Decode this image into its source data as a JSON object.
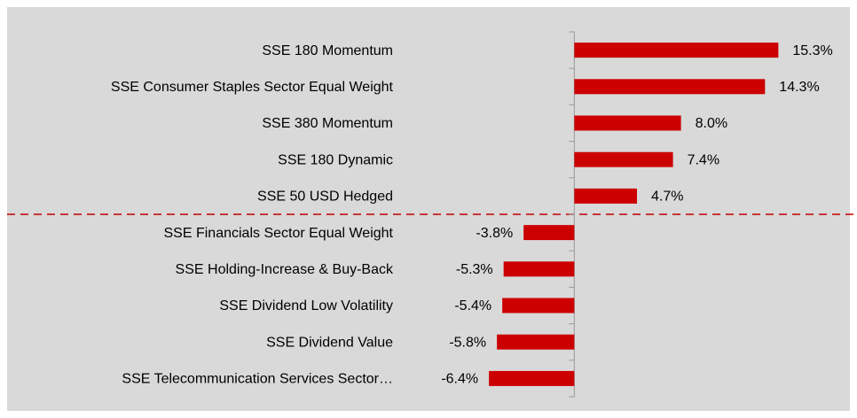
{
  "chart_data": {
    "type": "bar",
    "orientation": "horizontal",
    "categories": [
      "SSE 180 Momentum",
      "SSE Consumer Staples Sector Equal Weight",
      "SSE 380 Momentum",
      "SSE 180 Dynamic",
      "SSE 50 USD Hedged",
      "SSE Financials Sector Equal Weight",
      "SSE Holding-Increase & Buy-Back",
      "SSE Dividend Low Volatility",
      "SSE Dividend Value",
      "SSE Telecommunication Services Sector…"
    ],
    "values": [
      15.3,
      14.3,
      8.0,
      7.4,
      4.7,
      -3.8,
      -5.3,
      -5.4,
      -5.8,
      -6.4
    ],
    "value_labels": [
      "15.3%",
      "14.3%",
      "8.0%",
      "7.4%",
      "4.7%",
      "-3.8%",
      "-5.3%",
      "-5.4%",
      "-5.8%",
      "-6.4%"
    ],
    "color": "#cc0000",
    "xlim": [
      -10,
      20
    ]
  }
}
